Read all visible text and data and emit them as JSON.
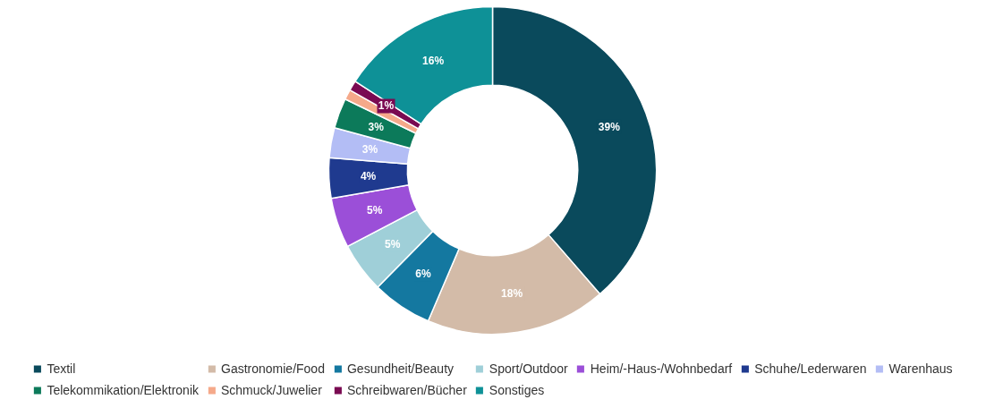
{
  "chart_data": {
    "type": "donut",
    "categories": [
      "Textil",
      "Gastronomie/Food",
      "Gesundheit/Beauty",
      "Sport/Outdoor",
      "Heim/-Haus-/Wohnbedarf",
      "Schuhe/Lederwaren",
      "Warenhaus",
      "Telekommikation/Elektronik",
      "Schmuck/Juwelier",
      "Schreibwaren/Bücher",
      "Sonstiges"
    ],
    "values": [
      39,
      18,
      6,
      5,
      5,
      4,
      3,
      3,
      1,
      1,
      16
    ],
    "colors": [
      "#0a4a5c",
      "#d3bba8",
      "#1478a0",
      "#9fcfd8",
      "#9b4fd8",
      "#1f3a8f",
      "#b3bdf5",
      "#0c7a5a",
      "#f5a98a",
      "#7a0a52",
      "#0e9197"
    ],
    "value_labels": [
      "39%",
      "18%",
      "6%",
      "5%",
      "5%",
      "4%",
      "3%",
      "3%",
      null,
      "1%",
      "16%"
    ],
    "legend": "bottom"
  }
}
